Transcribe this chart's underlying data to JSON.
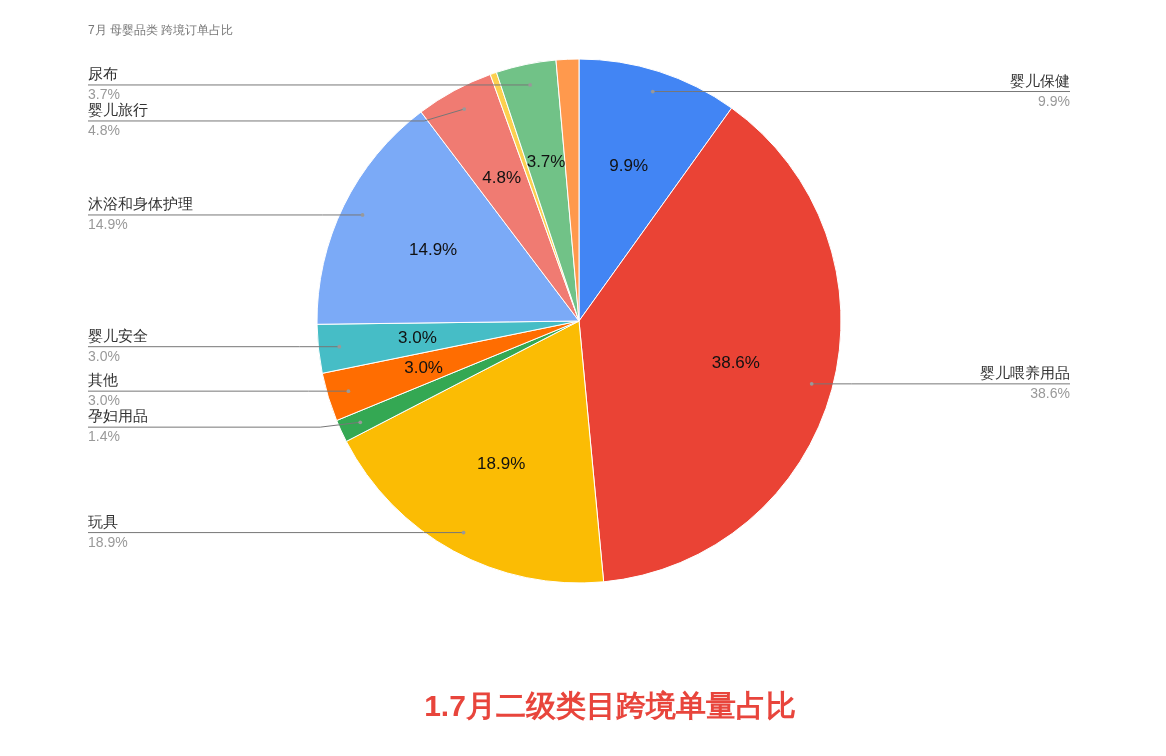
{
  "chart_data": {
    "type": "pie",
    "title": "1.7月二级类目跨境单量占比",
    "subtitle": "7月 母婴品类 跨境订单占比",
    "categories": [
      "婴儿保健",
      "婴儿喂养用品",
      "玩具",
      "孕妇用品",
      "其他",
      "婴儿安全",
      "沐浴和身体护理",
      "婴儿旅行",
      null,
      "尿布",
      null
    ],
    "values": [
      9.9,
      38.6,
      18.9,
      1.4,
      3.0,
      3.0,
      14.9,
      4.8,
      0.4,
      3.7,
      1.4
    ],
    "value_labels": [
      "9.9%",
      "38.6%",
      "18.9%",
      "1.4%",
      "3.0%",
      "3.0%",
      "14.9%",
      "4.8%",
      null,
      "3.7%",
      null
    ],
    "colors": [
      "#4285f4",
      "#ea4335",
      "#fbbc04",
      "#34a853",
      "#ff6d01",
      "#46bdc6",
      "#7baaf7",
      "#f07b72",
      "#fcd04f",
      "#71c287",
      "#ff994d"
    ]
  }
}
